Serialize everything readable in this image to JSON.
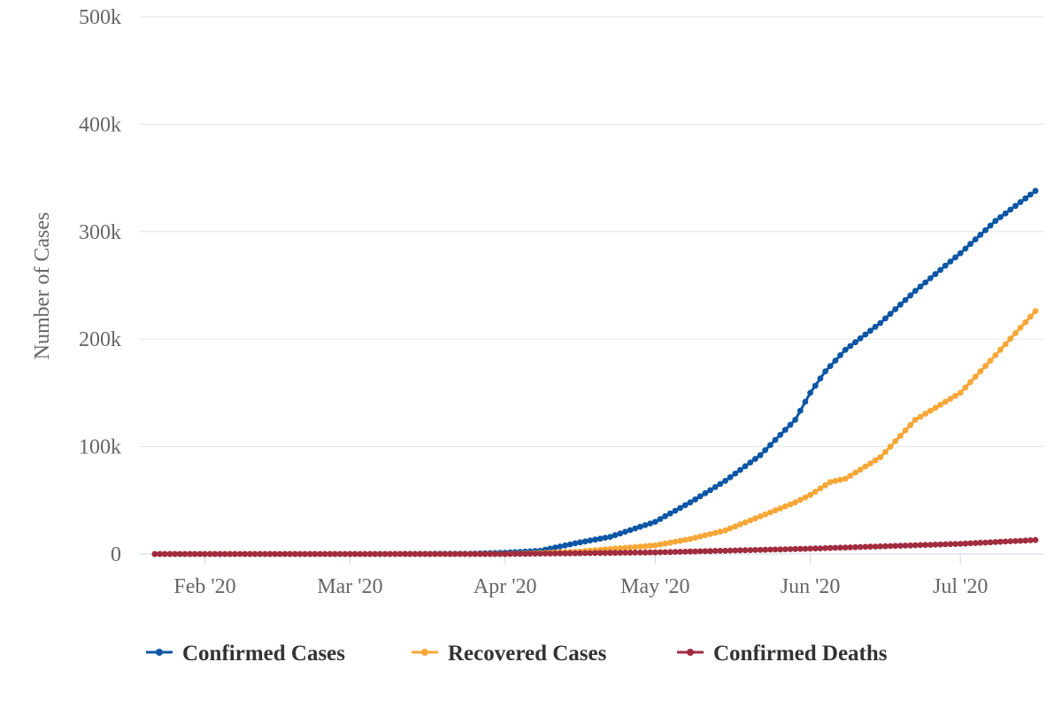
{
  "chart_data": {
    "type": "line",
    "title": "",
    "xlabel": "",
    "ylabel": "Number of Cases",
    "x_range": [
      "2020-01-22",
      "2020-07-16"
    ],
    "ylim": [
      0,
      500000
    ],
    "y_ticks": [
      0,
      100000,
      200000,
      300000,
      400000,
      500000
    ],
    "y_tick_labels": [
      "0",
      "100k",
      "200k",
      "300k",
      "400k",
      "500k"
    ],
    "x_ticks": [
      "2020-02-01",
      "2020-03-01",
      "2020-04-01",
      "2020-05-01",
      "2020-06-01",
      "2020-07-01"
    ],
    "x_tick_labels": [
      "Feb '20",
      "Mar '20",
      "Apr '20",
      "May '20",
      "Jun '20",
      "Jul '20"
    ],
    "grid": "horizontal",
    "legend_position": "bottom",
    "series": [
      {
        "name": "Confirmed Cases",
        "color": "#0d56a5",
        "points": [
          [
            "2020-01-22",
            0
          ],
          [
            "2020-03-01",
            0
          ],
          [
            "2020-03-25",
            300
          ],
          [
            "2020-04-01",
            1200
          ],
          [
            "2020-04-08",
            3000
          ],
          [
            "2020-04-15",
            10000
          ],
          [
            "2020-04-22",
            16000
          ],
          [
            "2020-05-01",
            30000
          ],
          [
            "2020-05-08",
            48000
          ],
          [
            "2020-05-15",
            68000
          ],
          [
            "2020-05-22",
            92000
          ],
          [
            "2020-05-29",
            125000
          ],
          [
            "2020-06-01",
            150000
          ],
          [
            "2020-06-04",
            170000
          ],
          [
            "2020-06-08",
            190000
          ],
          [
            "2020-06-15",
            215000
          ],
          [
            "2020-06-22",
            245000
          ],
          [
            "2020-07-01",
            280000
          ],
          [
            "2020-07-08",
            310000
          ],
          [
            "2020-07-16",
            338000
          ]
        ]
      },
      {
        "name": "Recovered Cases",
        "color": "#f7a738",
        "points": [
          [
            "2020-01-22",
            0
          ],
          [
            "2020-04-01",
            0
          ],
          [
            "2020-04-15",
            2000
          ],
          [
            "2020-05-01",
            8000
          ],
          [
            "2020-05-08",
            14000
          ],
          [
            "2020-05-15",
            22000
          ],
          [
            "2020-05-22",
            35000
          ],
          [
            "2020-05-29",
            48000
          ],
          [
            "2020-06-01",
            55000
          ],
          [
            "2020-06-05",
            67000
          ],
          [
            "2020-06-08",
            70000
          ],
          [
            "2020-06-15",
            90000
          ],
          [
            "2020-06-22",
            125000
          ],
          [
            "2020-07-01",
            150000
          ],
          [
            "2020-07-08",
            185000
          ],
          [
            "2020-07-16",
            226000
          ]
        ]
      },
      {
        "name": "Confirmed Deaths",
        "color": "#a12c3f",
        "points": [
          [
            "2020-01-22",
            0
          ],
          [
            "2020-04-01",
            0
          ],
          [
            "2020-05-01",
            1500
          ],
          [
            "2020-06-01",
            5000
          ],
          [
            "2020-07-01",
            9500
          ],
          [
            "2020-07-16",
            13000
          ]
        ]
      }
    ]
  }
}
